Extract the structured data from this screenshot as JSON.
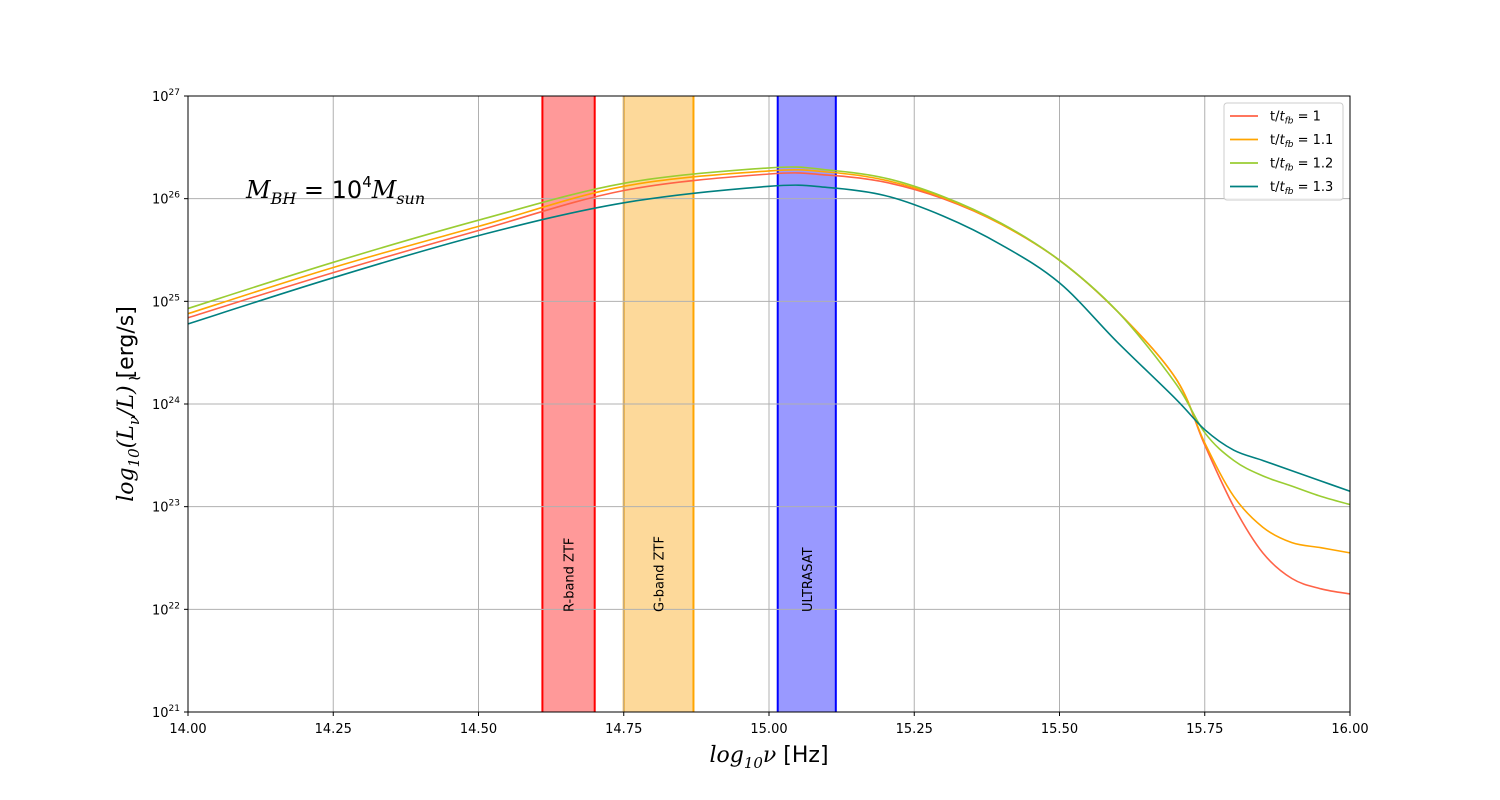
{
  "chart_data": {
    "type": "line",
    "xlabel_main": "log",
    "xlabel_sub": "10",
    "xlabel_var": "ν",
    "xlabel_unit": " [Hz]",
    "ylabel_prefix": "log",
    "ylabel_sub": "10",
    "ylabel_body": "(L",
    "ylabel_nu": "ν",
    "ylabel_rest": "/L)",
    "ylabel_unit": " [erg/s]",
    "xlim": [
      14.0,
      16.0
    ],
    "ylim_log": [
      21,
      27
    ],
    "x_ticks": [
      "14.00",
      "14.25",
      "14.50",
      "14.75",
      "15.00",
      "15.25",
      "15.50",
      "15.75",
      "16.00"
    ],
    "y_ticks": [
      {
        "base": "10",
        "exp": "21"
      },
      {
        "base": "10",
        "exp": "22"
      },
      {
        "base": "10",
        "exp": "23"
      },
      {
        "base": "10",
        "exp": "24"
      },
      {
        "base": "10",
        "exp": "25"
      },
      {
        "base": "10",
        "exp": "26"
      },
      {
        "base": "10",
        "exp": "27"
      }
    ],
    "grid": true,
    "legend_position": "top-right",
    "annotation": {
      "m": "M",
      "sub": "BH",
      "eq": " = 10",
      "exp": "4",
      "m2": "M",
      "sub2": "sun"
    },
    "bands": [
      {
        "label": "R-band ZTF",
        "x0": 14.61,
        "x1": 14.7,
        "fill": "#ff9999",
        "edge": "#ff0000"
      },
      {
        "label": "G-band ZTF",
        "x0": 14.75,
        "x1": 14.87,
        "fill": "#fdd99a",
        "edge": "#ffa500"
      },
      {
        "label": "ULTRASAT",
        "x0": 15.015,
        "x1": 15.115,
        "fill": "#9999ff",
        "edge": "#0000ff"
      }
    ],
    "series": [
      {
        "name_pre": "t/",
        "name_t": "t",
        "name_sub": "fb",
        "name_post": " = 1",
        "color": "#ff6347",
        "x": [
          14.0,
          14.25,
          14.5,
          14.75,
          15.0,
          15.1,
          15.2,
          15.3,
          15.4,
          15.5,
          15.6,
          15.7,
          15.75,
          15.8,
          15.85,
          15.9,
          15.95,
          16.0
        ],
        "logy": [
          24.84,
          25.28,
          25.69,
          26.08,
          26.24,
          26.23,
          26.16,
          26.0,
          25.75,
          25.4,
          24.9,
          24.25,
          23.6,
          23.0,
          22.55,
          22.3,
          22.2,
          22.15
        ]
      },
      {
        "name_pre": "t/",
        "name_t": "t",
        "name_sub": "fb",
        "name_post": " = 1.1",
        "color": "#ffa500",
        "x": [
          14.0,
          14.25,
          14.5,
          14.75,
          15.0,
          15.1,
          15.2,
          15.3,
          15.4,
          15.5,
          15.6,
          15.7,
          15.75,
          15.8,
          15.85,
          15.9,
          15.95,
          16.0
        ],
        "logy": [
          24.88,
          25.33,
          25.73,
          26.12,
          26.27,
          26.26,
          26.18,
          26.01,
          25.75,
          25.4,
          24.9,
          24.25,
          23.62,
          23.1,
          22.8,
          22.65,
          22.6,
          22.55
        ]
      },
      {
        "name_pre": "t/",
        "name_t": "t",
        "name_sub": "fb",
        "name_post": " = 1.2",
        "color": "#9acd32",
        "x": [
          14.0,
          14.25,
          14.5,
          14.75,
          15.0,
          15.1,
          15.2,
          15.3,
          15.4,
          15.5,
          15.6,
          15.7,
          15.75,
          15.8,
          15.85,
          15.9,
          15.95,
          16.0
        ],
        "logy": [
          24.93,
          25.38,
          25.79,
          26.15,
          26.3,
          26.28,
          26.2,
          26.02,
          25.76,
          25.4,
          24.9,
          24.2,
          23.72,
          23.45,
          23.3,
          23.2,
          23.1,
          23.02
        ]
      },
      {
        "name_pre": "t/",
        "name_t": "t",
        "name_sub": "fb",
        "name_post": " = 1.3",
        "color": "#008080",
        "x": [
          14.0,
          14.25,
          14.5,
          14.75,
          15.0,
          15.1,
          15.2,
          15.3,
          15.4,
          15.5,
          15.6,
          15.7,
          15.75,
          15.8,
          15.85,
          15.9,
          15.95,
          16.0
        ],
        "logy": [
          24.78,
          25.23,
          25.64,
          25.96,
          26.12,
          26.11,
          26.03,
          25.83,
          25.55,
          25.18,
          24.6,
          24.05,
          23.75,
          23.55,
          23.45,
          23.35,
          23.25,
          23.15
        ]
      }
    ]
  }
}
